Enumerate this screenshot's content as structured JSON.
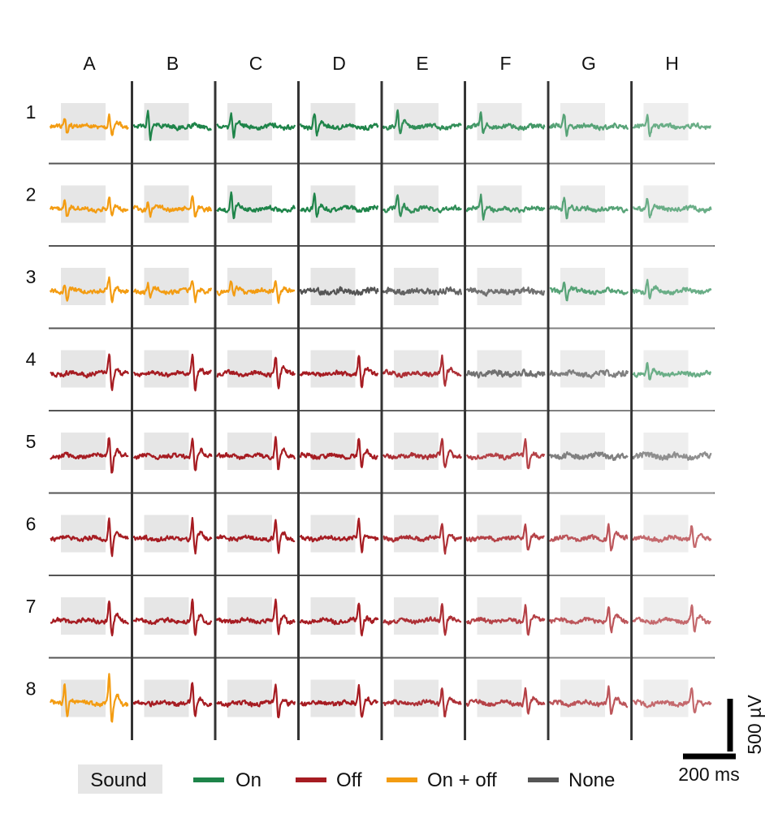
{
  "chart_data": {
    "type": "line",
    "columns": [
      "A",
      "B",
      "C",
      "D",
      "E",
      "F",
      "G",
      "H"
    ],
    "rows": [
      "1",
      "2",
      "3",
      "4",
      "5",
      "6",
      "7",
      "8"
    ],
    "grid": [
      [
        "On + off",
        "On",
        "On",
        "On",
        "On",
        "On",
        "On",
        "On"
      ],
      [
        "On + off",
        "On + off",
        "On",
        "On",
        "On",
        "On",
        "On",
        "On"
      ],
      [
        "On + off",
        "On + off",
        "On + off",
        "None",
        "None",
        "None",
        "On",
        "On"
      ],
      [
        "Off",
        "Off",
        "Off",
        "Off",
        "Off",
        "None",
        "None",
        "On"
      ],
      [
        "Off",
        "Off",
        "Off",
        "Off",
        "Off",
        "Off",
        "None",
        "None"
      ],
      [
        "Off",
        "Off",
        "Off",
        "Off",
        "Off",
        "Off",
        "Off",
        "Off"
      ],
      [
        "Off",
        "Off",
        "Off",
        "Off",
        "Off",
        "Off",
        "Off",
        "Off"
      ],
      [
        "On + off",
        "Off",
        "Off",
        "Off",
        "Off",
        "Off",
        "Off",
        "Off"
      ]
    ],
    "legend": {
      "stimulus_label": "Sound",
      "entries": [
        {
          "name": "On",
          "color": "#1e8449"
        },
        {
          "name": "Off",
          "color": "#a61c22"
        },
        {
          "name": "On + off",
          "color": "#f39c12"
        },
        {
          "name": "None",
          "color": "#555555"
        }
      ],
      "placement": "bottom"
    },
    "scale_bar": {
      "vertical_label": "500 µV",
      "horizontal_label": "200 ms"
    },
    "colors": {
      "stimulus_shade": "#e6e6e6",
      "divider": "#555555"
    }
  }
}
